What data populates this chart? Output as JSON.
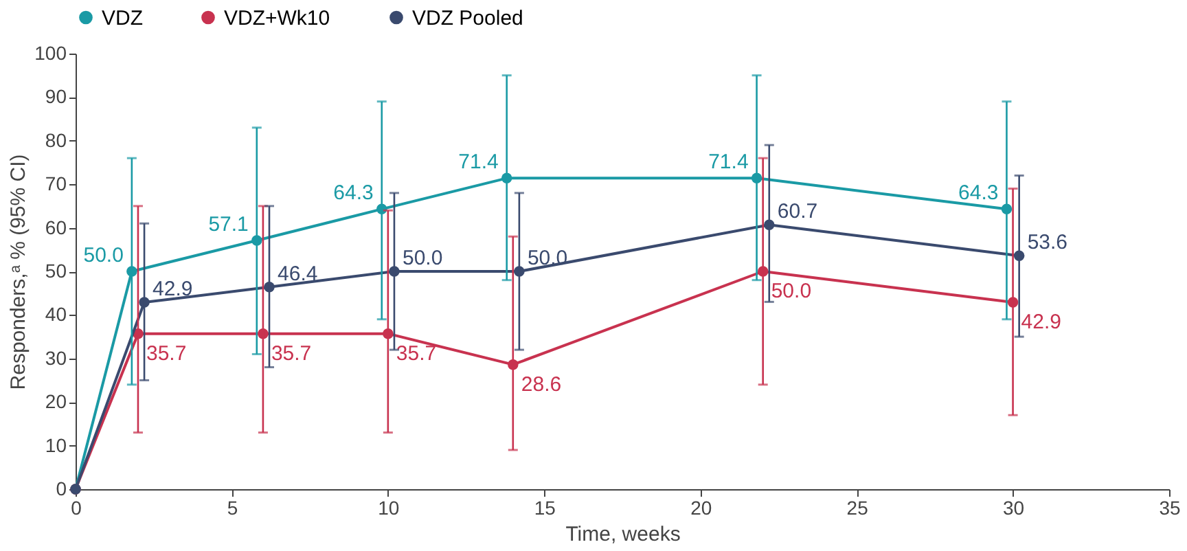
{
  "chart_data": {
    "type": "line",
    "xlabel": "Time, weeks",
    "ylabel": "Responders,ᵃ % (95% CI)",
    "xlim": [
      0,
      35
    ],
    "xticks": [
      0,
      5,
      10,
      15,
      20,
      25,
      30,
      35
    ],
    "ylim": [
      0,
      100
    ],
    "yticks": [
      0,
      10,
      20,
      30,
      40,
      50,
      60,
      70,
      80,
      90,
      100
    ],
    "grid": false,
    "legend": "top",
    "marker": "circle",
    "line_style": "solid",
    "series": [
      {
        "name": "VDZ",
        "color": "#1a9aa5",
        "x": [
          0,
          1.8,
          5.8,
          9.8,
          13.8,
          21.8,
          29.8
        ],
        "values": [
          0,
          50.0,
          57.1,
          64.3,
          71.4,
          71.4,
          64.3
        ],
        "errors": [
          null,
          [
            24,
            76
          ],
          [
            31,
            83
          ],
          [
            39,
            89
          ],
          [
            48,
            95
          ],
          [
            48,
            95
          ],
          [
            39,
            89
          ]
        ],
        "value_labels": [
          null,
          "50.0",
          "57.1",
          "64.3",
          "71.4",
          "71.4",
          "64.3"
        ]
      },
      {
        "name": "VDZ+Wk10",
        "color": "#c8324f",
        "x": [
          0,
          2,
          6,
          10,
          14,
          22,
          30
        ],
        "values": [
          0,
          35.7,
          35.7,
          35.7,
          28.6,
          50.0,
          42.9
        ],
        "errors": [
          null,
          [
            13,
            65
          ],
          [
            13,
            65
          ],
          [
            13,
            64
          ],
          [
            9,
            58
          ],
          [
            24,
            76
          ],
          [
            17,
            69
          ]
        ],
        "value_labels": [
          null,
          "35.7",
          "35.7",
          "35.7",
          "28.6",
          "50.0",
          "42.9"
        ]
      },
      {
        "name": "VDZ Pooled",
        "color": "#3a4a6e",
        "x": [
          0,
          2.2,
          6.2,
          10.2,
          14.2,
          22.2,
          30.2
        ],
        "values": [
          0,
          42.9,
          46.4,
          50.0,
          50.0,
          60.7,
          53.6
        ],
        "errors": [
          null,
          [
            25,
            61
          ],
          [
            28,
            65
          ],
          [
            32,
            68
          ],
          [
            32,
            68
          ],
          [
            43,
            79
          ],
          [
            35,
            72
          ]
        ],
        "value_labels": [
          null,
          "42.9",
          "46.4",
          "50.0",
          "50.0",
          "60.7",
          "53.6"
        ]
      }
    ]
  }
}
